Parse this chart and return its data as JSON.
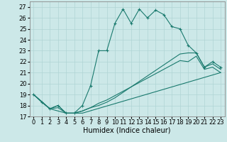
{
  "xlabel": "Humidex (Indice chaleur)",
  "xlim": [
    -0.5,
    23.5
  ],
  "ylim": [
    17,
    27.5
  ],
  "xticks": [
    0,
    1,
    2,
    3,
    4,
    5,
    6,
    7,
    8,
    9,
    10,
    11,
    12,
    13,
    14,
    15,
    16,
    17,
    18,
    19,
    20,
    21,
    22,
    23
  ],
  "yticks": [
    17,
    18,
    19,
    20,
    21,
    22,
    23,
    24,
    25,
    26,
    27
  ],
  "bg_color": "#cce8e8",
  "line_color": "#1a7a6e",
  "lines": [
    {
      "x": [
        0,
        1,
        2,
        3,
        4,
        5,
        6,
        7,
        8,
        9,
        10,
        11,
        12,
        13,
        14,
        15,
        16,
        17,
        18,
        19,
        20,
        21,
        22,
        23
      ],
      "y": [
        19.0,
        18.3,
        17.7,
        18.0,
        17.3,
        17.3,
        18.0,
        19.8,
        23.0,
        23.0,
        25.5,
        26.8,
        25.5,
        26.8,
        26.0,
        26.7,
        26.3,
        25.2,
        25.0,
        23.5,
        22.8,
        21.5,
        22.0,
        21.5
      ],
      "marker": true
    },
    {
      "x": [
        0,
        2,
        3,
        4,
        5,
        6,
        7,
        8,
        9,
        10,
        11,
        12,
        13,
        14,
        15,
        16,
        17,
        18,
        19,
        20,
        21,
        22,
        23
      ],
      "y": [
        19.0,
        17.7,
        18.0,
        17.3,
        17.3,
        17.5,
        17.8,
        18.0,
        18.3,
        18.7,
        19.2,
        19.7,
        20.2,
        20.7,
        21.2,
        21.7,
        22.2,
        22.7,
        22.8,
        22.8,
        21.5,
        21.8,
        21.3
      ],
      "marker": false
    },
    {
      "x": [
        0,
        2,
        3,
        4,
        5,
        6,
        7,
        8,
        9,
        10,
        11,
        12,
        13,
        14,
        15,
        16,
        17,
        18,
        19,
        20,
        21,
        22,
        23
      ],
      "y": [
        19.0,
        17.7,
        17.5,
        17.3,
        17.3,
        17.5,
        17.8,
        18.2,
        18.5,
        18.9,
        19.3,
        19.7,
        20.1,
        20.5,
        20.9,
        21.3,
        21.7,
        22.1,
        22.0,
        22.5,
        21.3,
        21.5,
        21.0
      ],
      "marker": false
    },
    {
      "x": [
        0,
        2,
        3,
        4,
        5,
        6,
        23
      ],
      "y": [
        19.0,
        17.7,
        17.8,
        17.3,
        17.3,
        17.3,
        21.0
      ],
      "marker": false
    }
  ],
  "font_size": 6,
  "xlabel_fontsize": 7
}
